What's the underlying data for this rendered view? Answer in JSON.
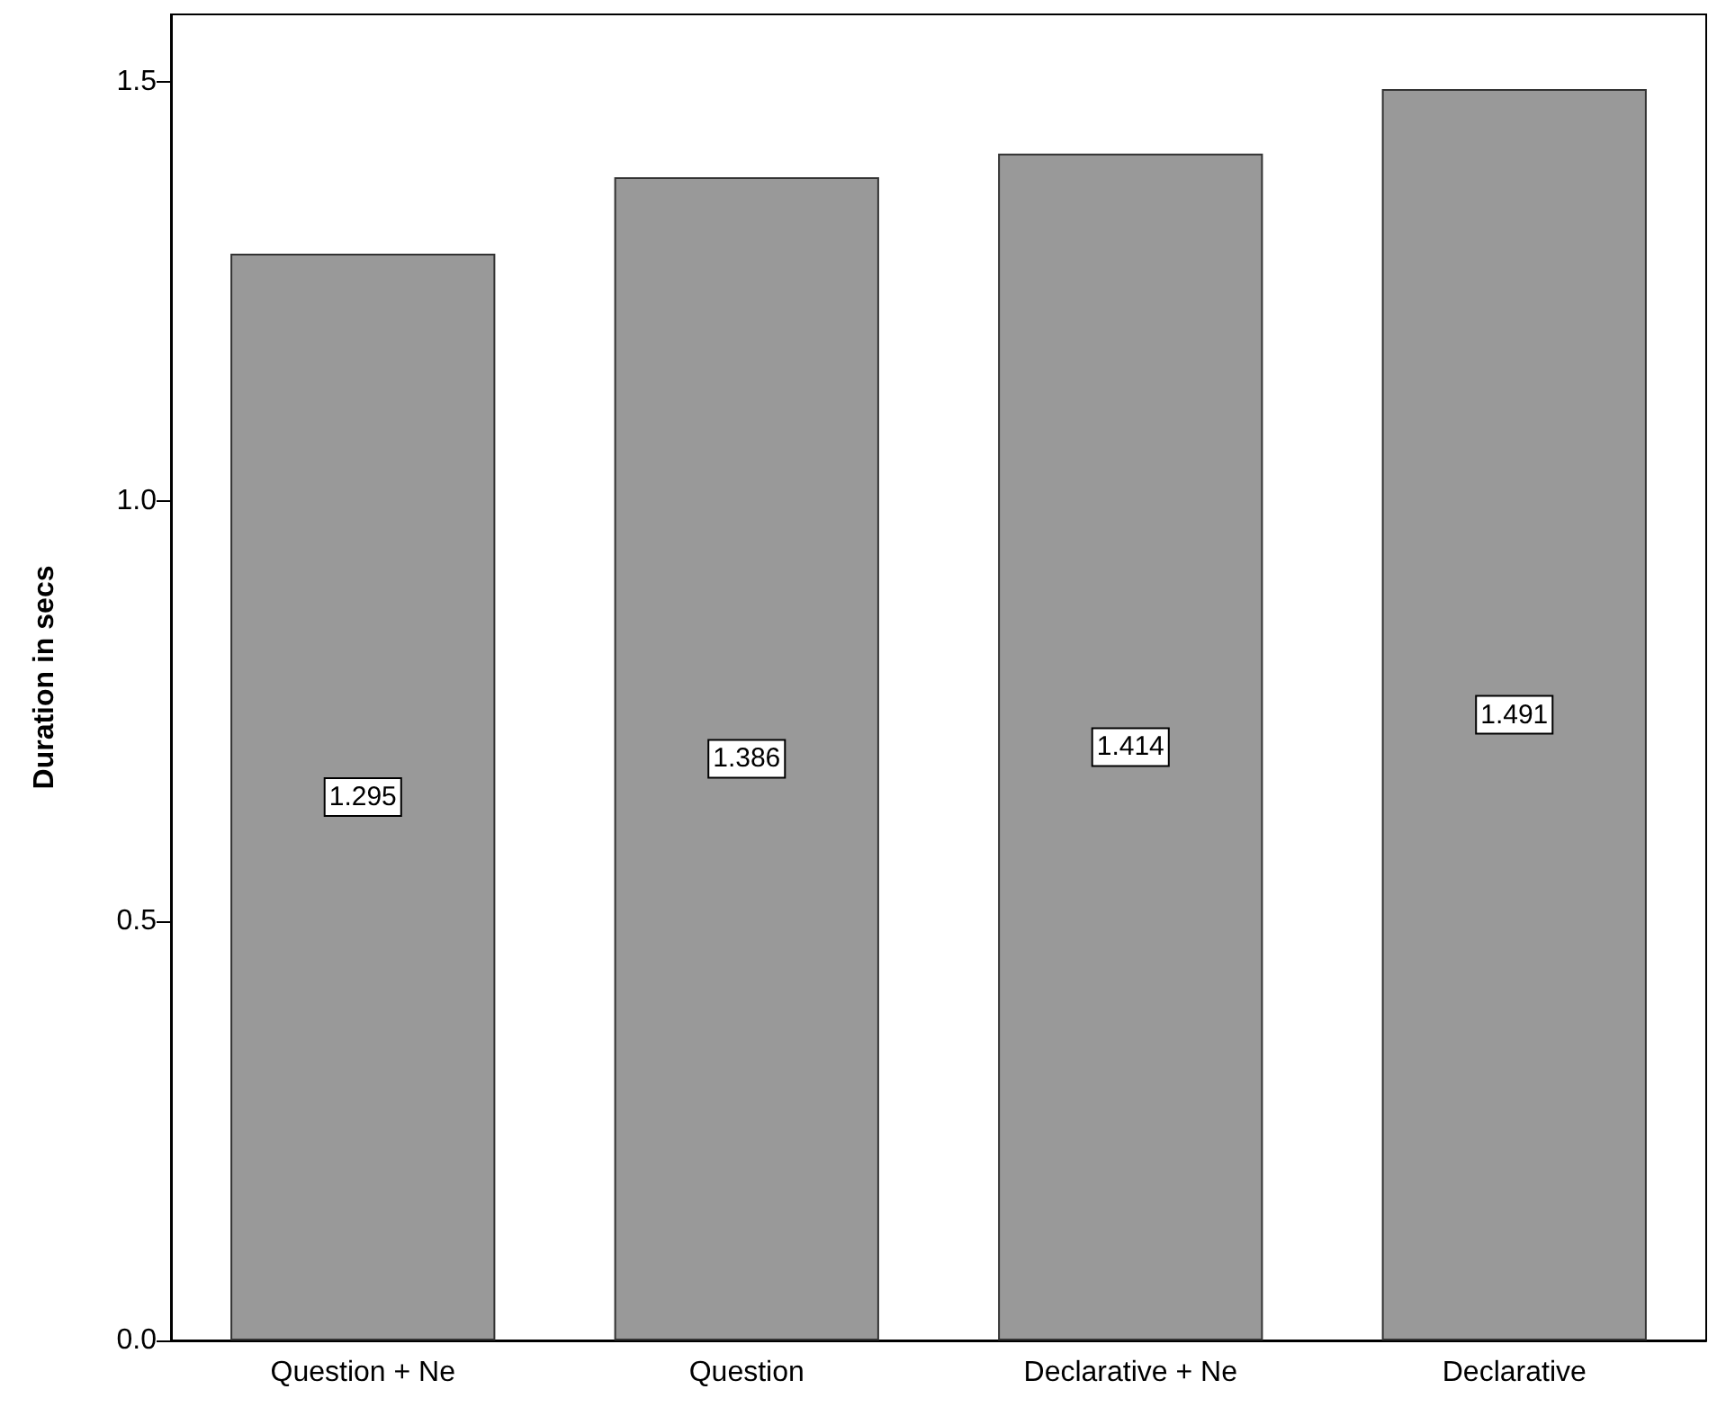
{
  "chart_data": {
    "type": "bar",
    "ylabel": "Duration in secs",
    "categories": [
      "Question + Ne",
      "Question",
      "Declarative + Ne",
      "Declarative"
    ],
    "values": [
      1.295,
      1.386,
      1.414,
      1.491
    ],
    "color": "#999999",
    "ylim": [
      0,
      1.58
    ],
    "yticks": [
      {
        "value": 0,
        "label": "0.0"
      },
      {
        "value": 0.5,
        "label": "0.5"
      },
      {
        "value": 1,
        "label": "1.0"
      },
      {
        "value": 1.5,
        "label": "1.5"
      }
    ],
    "data_labels": true
  }
}
